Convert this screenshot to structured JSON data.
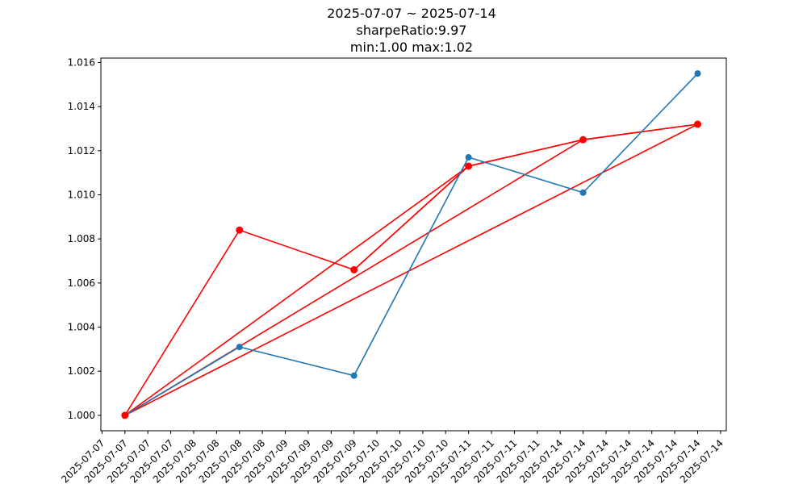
{
  "title_lines": [
    "2025-07-07 ~ 2025-07-14",
    "sharpeRatio:9.97",
    "min:1.00 max:1.02"
  ],
  "colors": {
    "series1": "#1f77b4",
    "series2": "#ff0000",
    "axis": "#000000"
  },
  "chart_data": {
    "type": "line",
    "title": "2025-07-07 ~ 2025-07-14 sharpeRatio:9.97 min:1.00 max:1.02",
    "xlabel": "",
    "ylabel": "",
    "x": [
      "2025-07-07",
      "2025-07-08",
      "2025-07-09",
      "2025-07-10",
      "2025-07-11",
      "2025-07-14"
    ],
    "x_tick_labels": [
      "2025-07-07",
      "2025-07-07",
      "2025-07-07",
      "2025-07-07",
      "2025-07-08",
      "2025-07-08",
      "2025-07-08",
      "2025-07-08",
      "2025-07-09",
      "2025-07-09",
      "2025-07-09",
      "2025-07-09",
      "2025-07-10",
      "2025-07-10",
      "2025-07-10",
      "2025-07-10",
      "2025-07-11",
      "2025-07-11",
      "2025-07-11",
      "2025-07-11",
      "2025-07-14",
      "2025-07-14",
      "2025-07-14",
      "2025-07-14",
      "2025-07-14",
      "2025-07-14",
      "2025-07-14",
      "2025-07-14"
    ],
    "x_tick_values": [
      -0.2,
      0.0,
      0.2,
      0.4,
      0.6,
      0.8,
      1.0,
      1.2,
      1.4,
      1.6,
      1.8,
      2.0,
      2.2,
      2.4,
      2.6,
      2.8,
      3.0,
      3.2,
      3.4,
      3.6,
      3.8,
      4.0,
      4.2,
      4.4,
      4.6,
      4.8,
      5.0,
      5.2
    ],
    "y_ticks": [
      1.0,
      1.002,
      1.004,
      1.006,
      1.008,
      1.01,
      1.012,
      1.014,
      1.016
    ],
    "y_tick_labels": [
      "1.000",
      "1.002",
      "1.004",
      "1.006",
      "1.008",
      "1.010",
      "1.012",
      "1.014",
      "1.016"
    ],
    "xlim": [
      -0.21,
      5.25
    ],
    "ylim": [
      0.9993,
      1.0162
    ],
    "grid": false,
    "series": [
      {
        "values": [
          1.0,
          1.0031,
          1.0018,
          1.0117,
          1.0101,
          1.0155
        ],
        "marker": "circle"
      },
      {
        "values": [
          1.0,
          1.0084,
          1.0066,
          1.0113,
          1.0125,
          1.0132
        ],
        "marker": "circle"
      }
    ],
    "red_segments": [
      [
        0,
        1
      ],
      [
        1,
        2
      ],
      [
        2,
        3
      ],
      [
        3,
        4
      ],
      [
        4,
        5
      ],
      [
        0,
        3
      ],
      [
        0,
        4
      ],
      [
        0,
        5
      ],
      [
        2,
        3
      ],
      [
        3,
        4
      ],
      [
        4,
        5
      ]
    ]
  }
}
